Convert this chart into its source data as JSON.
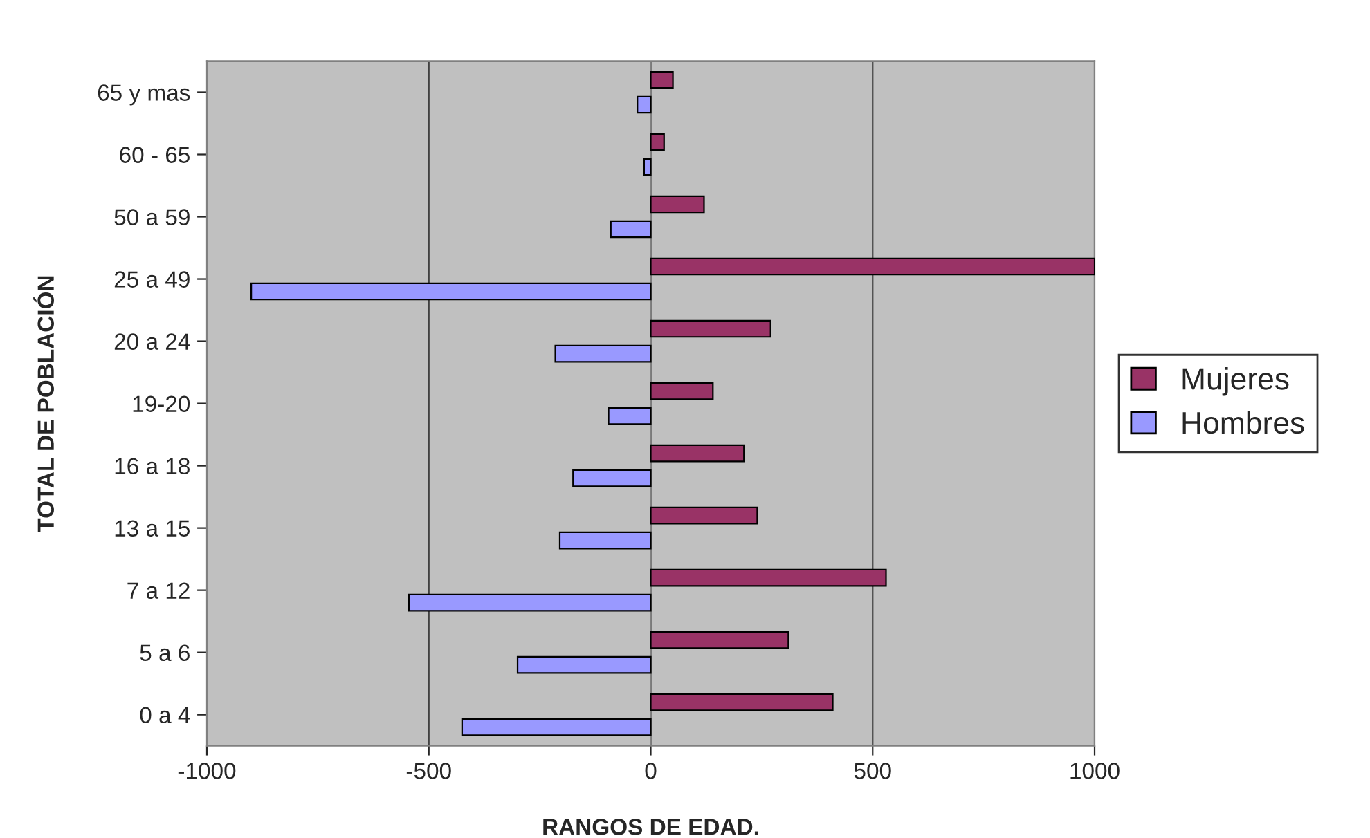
{
  "chart_data": {
    "type": "bar",
    "orientation": "horizontal",
    "xlabel": "RANGOS DE EDAD.",
    "ylabel": "TOTAL DE POBLACIÓN",
    "categories": [
      "65 y mas",
      "60 - 65",
      "50 a 59",
      "25 a 49",
      "20 a 24",
      "19-20",
      "16 a 18",
      "13 a 15",
      "7 a 12",
      "5 a 6",
      "0 a 4"
    ],
    "series": [
      {
        "name": "Mujeres",
        "color": "#993366",
        "values": [
          50,
          30,
          120,
          1000,
          270,
          140,
          210,
          240,
          530,
          310,
          410
        ]
      },
      {
        "name": "Hombres",
        "color": "#9999ff",
        "values": [
          -30,
          -15,
          -90,
          -900,
          -215,
          -95,
          -175,
          -205,
          -545,
          -300,
          -425
        ]
      }
    ],
    "xlim": [
      -1000,
      1000
    ],
    "xticks": [
      -1000,
      -500,
      0,
      500,
      1000
    ],
    "grid": "x",
    "legend": "right"
  }
}
